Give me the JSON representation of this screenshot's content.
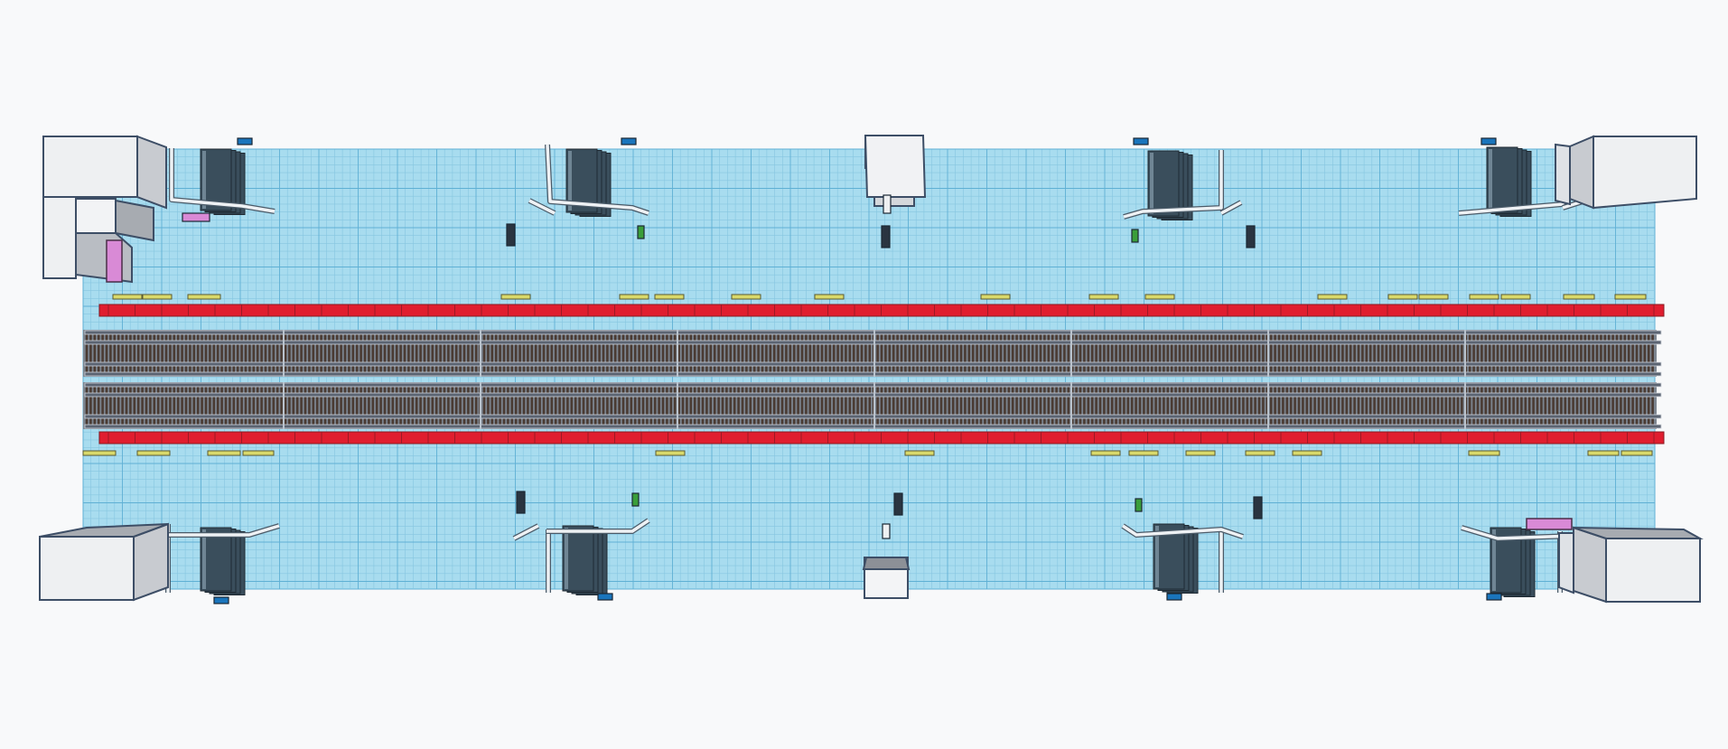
{
  "workplane": {
    "grid": true,
    "colors": {
      "background": "#f8f9fa",
      "workplane": "#a8dcef",
      "grid_minor": "#86c6e0",
      "grid_major": "#5fb0d4"
    }
  },
  "scene": {
    "view": "top",
    "track_count": 2,
    "colors": {
      "platform_edge": "#e01e2f",
      "rail": "#5b6472",
      "sleeper": "#4a3b33",
      "bench": "#d9d96a",
      "stair": "#3a4e5c",
      "escalator": "#2a3440",
      "wall": "#e2e4e8",
      "kiosk": "#f2f2f2",
      "ticket_gate": "#3a9e3a",
      "sign": "#1a75bc",
      "seat_pink": "#d98ad6"
    },
    "icons": [
      "bench-icon",
      "stair-icon",
      "wall-icon",
      "kiosk-icon",
      "rail-icon",
      "sign-icon"
    ]
  }
}
